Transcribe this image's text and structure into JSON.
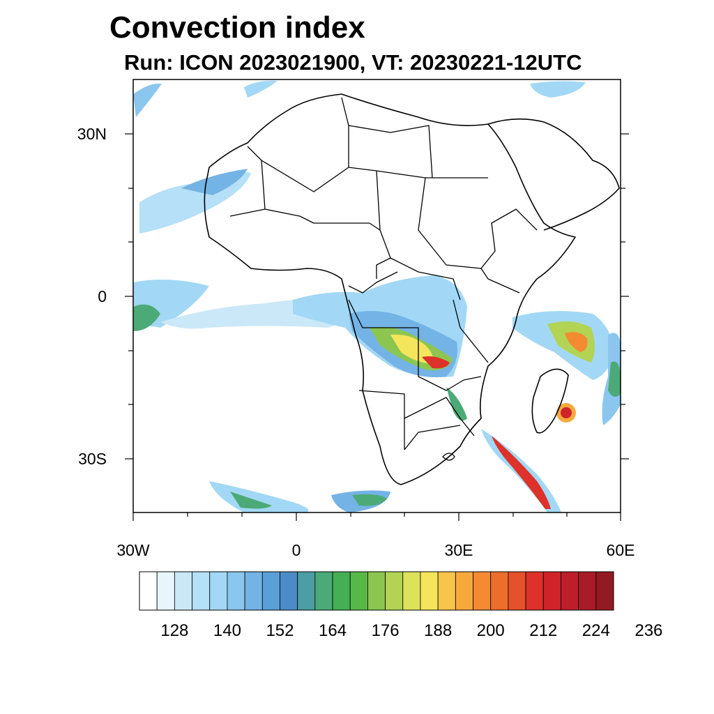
{
  "header": {
    "title": "Convection index",
    "subtitle": "Run: ICON 2023021900,  VT: 20230221-12UTC"
  },
  "map": {
    "lat_labels": [
      "30N",
      "0",
      "30S"
    ],
    "lon_labels": [
      "30W",
      "0",
      "30E",
      "60E"
    ]
  },
  "colorbar": {
    "labels": [
      "128",
      "140",
      "152",
      "164",
      "176",
      "188",
      "200",
      "212",
      "224",
      "236"
    ],
    "colors": [
      "#ffffff",
      "#e8f5fc",
      "#cbe8f8",
      "#b5e0f7",
      "#a2d8f5",
      "#8ac6ee",
      "#74b3e5",
      "#5a9fd6",
      "#4b8cc6",
      "#4b9ea3",
      "#4caa78",
      "#44af55",
      "#58b847",
      "#8cc650",
      "#b2d354",
      "#dce25a",
      "#f4e55d",
      "#f8c54c",
      "#f7a93e",
      "#f48b33",
      "#ed6e2c",
      "#e5512a",
      "#dd3129",
      "#cf2329",
      "#bd1e2a",
      "#a91b27",
      "#931a22"
    ]
  }
}
